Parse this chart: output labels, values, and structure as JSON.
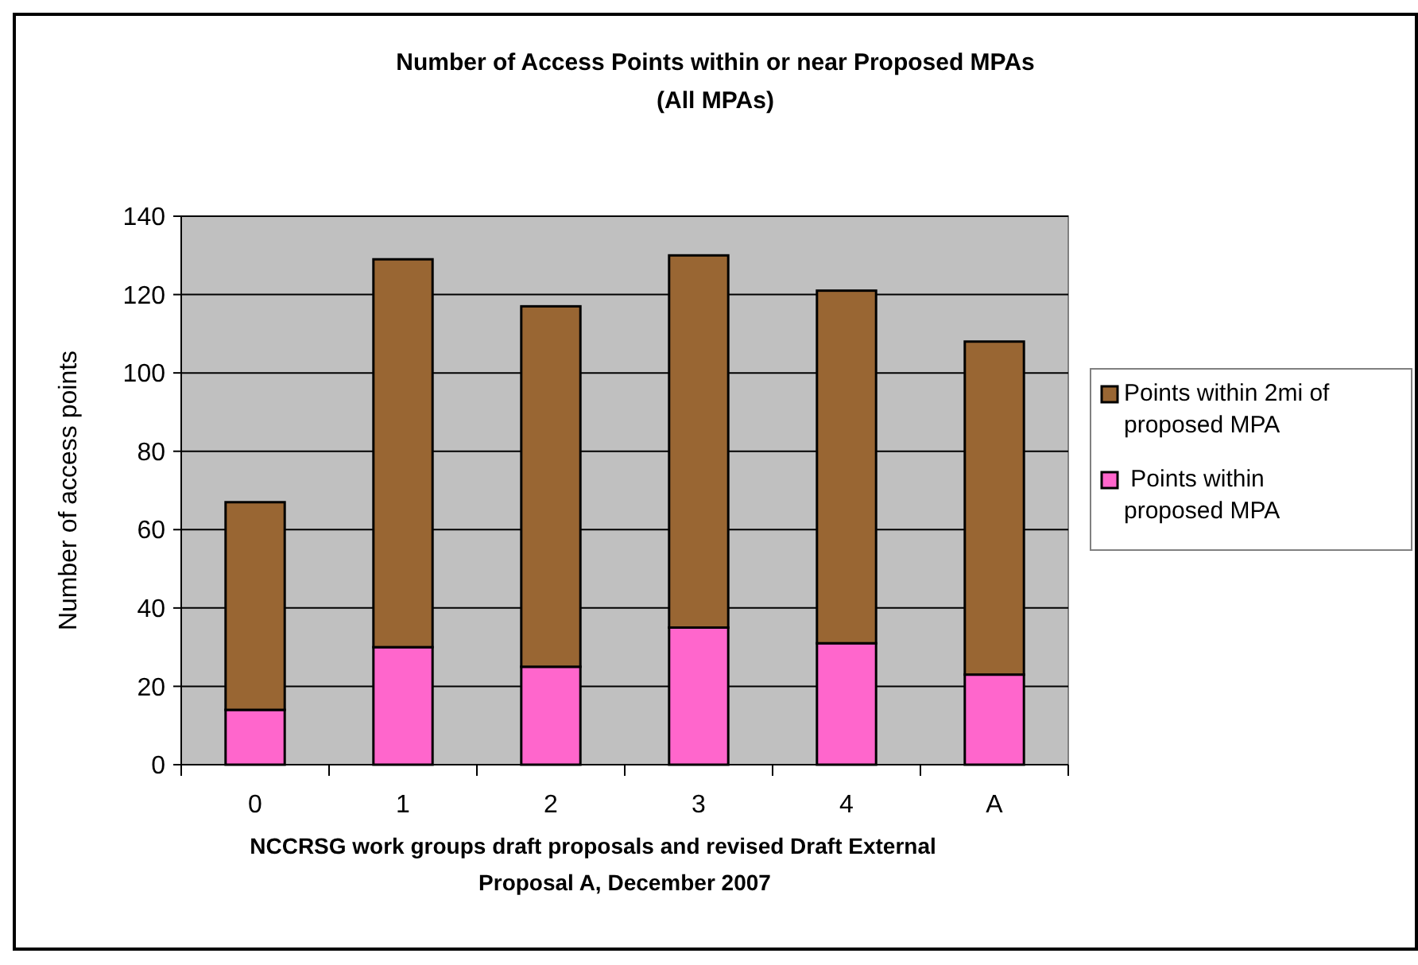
{
  "chart_data": {
    "type": "bar",
    "title": "Number of Access Points within or near Proposed MPAs\n(All MPAs)",
    "xlabel": "NCCRSG work groups draft proposals and revised Draft External\nProposal A, December 2007",
    "ylabel": "Number of access points",
    "categories": [
      "0",
      "1",
      "2",
      "3",
      "4",
      "A"
    ],
    "stacked": true,
    "series": [
      {
        "name": " Points within proposed MPA",
        "color": "#ff66cc",
        "values": [
          14,
          30,
          25,
          35,
          31,
          23
        ]
      },
      {
        "name": "Points within 2mi of proposed MPA",
        "color": "#996633",
        "values": [
          53,
          99,
          92,
          95,
          90,
          85
        ]
      }
    ],
    "ylim": [
      0,
      140
    ],
    "yticks": [
      0,
      20,
      40,
      60,
      80,
      100,
      120,
      140
    ],
    "grid": "y",
    "legend": "right"
  }
}
